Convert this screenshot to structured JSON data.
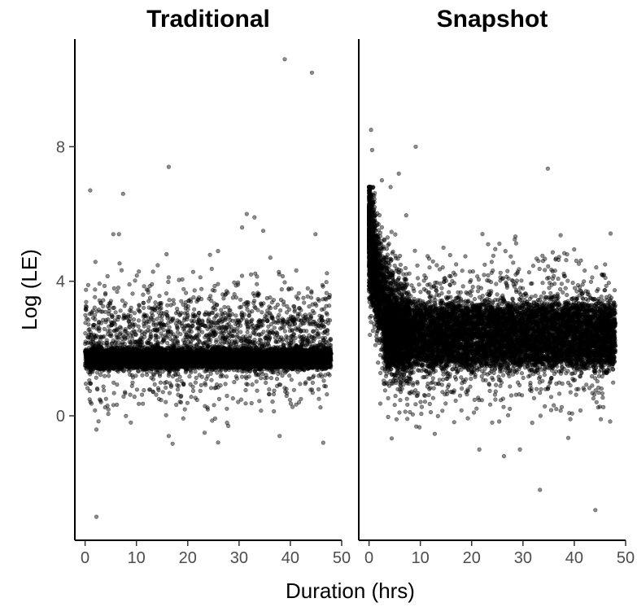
{
  "chart_data": {
    "type": "scatter",
    "facet": "columns",
    "xlabel": "Duration (hrs)",
    "ylabel": "Log (LE)",
    "xlim": [
      -2,
      50
    ],
    "ylim": [
      -3.7,
      11.2
    ],
    "x_ticks": [
      0,
      10,
      20,
      30,
      40,
      50
    ],
    "y_ticks": [
      0,
      4,
      8
    ],
    "point_color": "#000000",
    "point_opacity": 0.45,
    "grid": false,
    "legend": "none",
    "panels": [
      {
        "title": "Traditional",
        "distribution": {
          "band_center": 1.7,
          "band_halfwidth": 0.28,
          "x_range": [
            0,
            48
          ]
        },
        "points": [
          [
            38.9,
            10.6
          ],
          [
            44.2,
            10.2
          ],
          [
            16.3,
            7.4
          ],
          [
            1.0,
            6.7
          ],
          [
            7.4,
            6.6
          ],
          [
            31.5,
            6.0
          ],
          [
            33.0,
            5.9
          ],
          [
            30.6,
            5.6
          ],
          [
            34.7,
            5.5
          ],
          [
            6.6,
            5.4
          ],
          [
            5.5,
            5.4
          ],
          [
            25.9,
            4.9
          ],
          [
            36.1,
            4.7
          ],
          [
            44.9,
            5.4
          ],
          [
            2.2,
            -3.0
          ],
          [
            16.3,
            -0.6
          ],
          [
            46.4,
            -0.8
          ],
          [
            37.9,
            -0.6
          ],
          [
            27.9,
            -0.3
          ],
          [
            8.9,
            -0.2
          ]
        ]
      },
      {
        "title": "Snapshot",
        "distribution": {
          "plateau_center": 2.4,
          "plateau_halfwidth": 0.85,
          "early_center": 5.7,
          "decay_rate": 0.45,
          "x_range": [
            0,
            48
          ]
        },
        "points": [
          [
            0.4,
            8.5
          ],
          [
            0.6,
            7.9
          ],
          [
            9.1,
            8.0
          ],
          [
            2.5,
            7.0
          ],
          [
            4.2,
            6.8
          ],
          [
            33.3,
            -2.2
          ],
          [
            44.1,
            -2.8
          ],
          [
            29.4,
            -1.0
          ],
          [
            26.3,
            -1.2
          ],
          [
            21.5,
            -1.0
          ],
          [
            38.6,
            4.8
          ],
          [
            23.2,
            5.1
          ],
          [
            46.0,
            4.5
          ],
          [
            14.5,
            5.0
          ],
          [
            5.8,
            7.2
          ]
        ]
      }
    ]
  }
}
